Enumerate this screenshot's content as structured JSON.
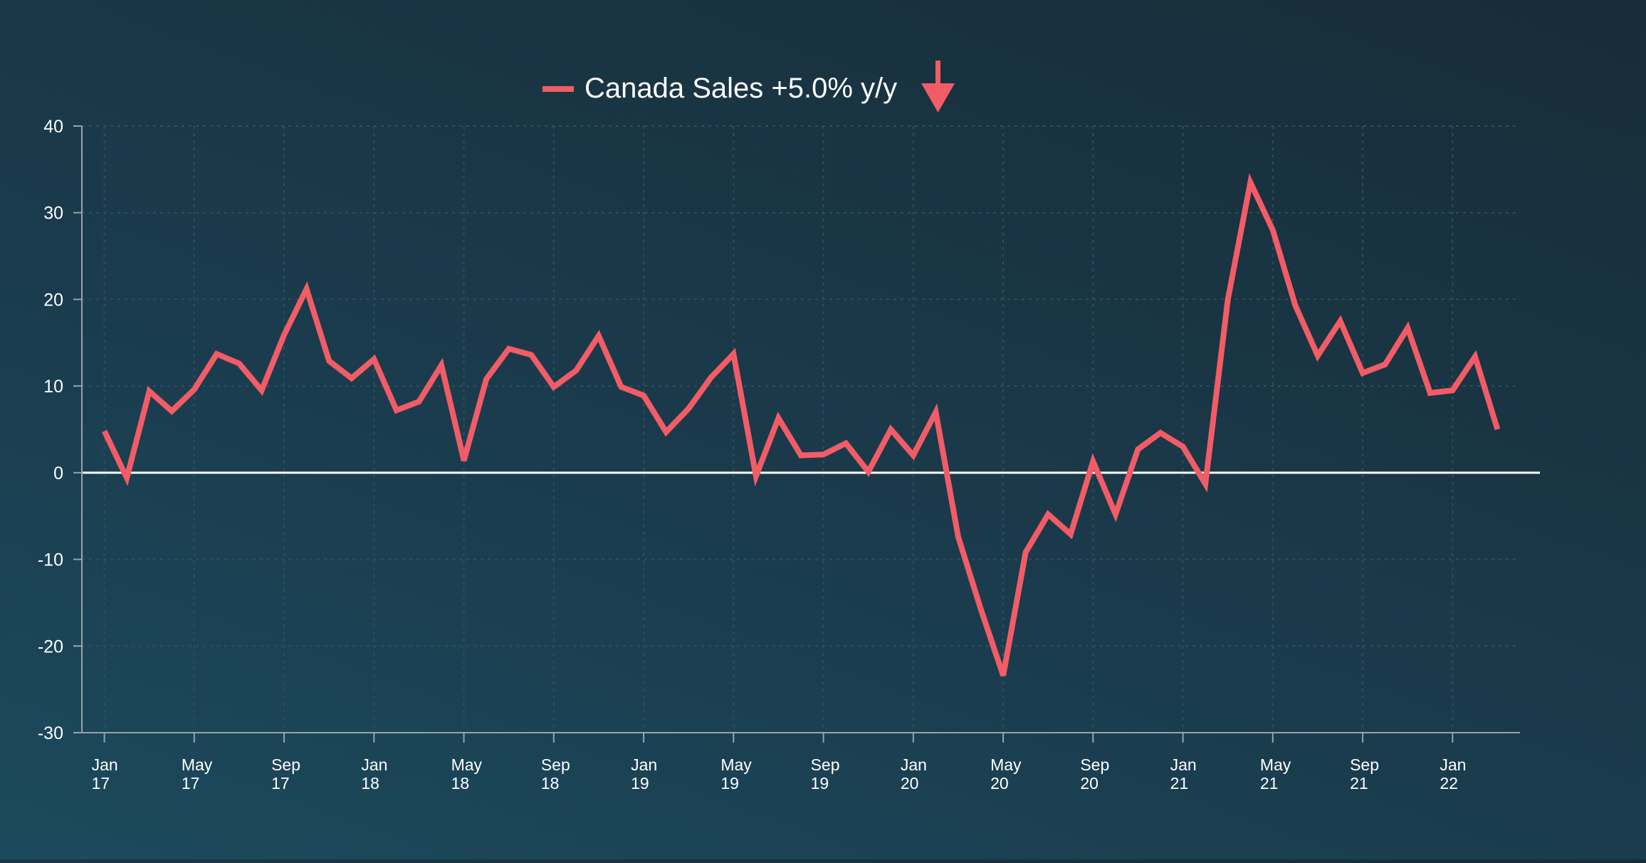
{
  "chart_data": {
    "type": "line",
    "legend": {
      "text": "Canada Sales +5.0% y/y",
      "placement": "top-center",
      "indicator": "down-arrow-icon"
    },
    "colors": {
      "series": "#f25c66",
      "axis": "#9aa3a8",
      "grid": "#2f4f5c",
      "text": "#ffffff",
      "zero_line": "#ffffff"
    },
    "grid": true,
    "ylim": [
      -30,
      40
    ],
    "yticks": [
      40,
      30,
      20,
      10,
      0,
      -10,
      -20,
      -30
    ],
    "xlim": [
      "2016-12",
      "2022-04"
    ],
    "xticks": [
      {
        "date": "2017-01",
        "line1": "Jan",
        "line2": "17"
      },
      {
        "date": "2017-05",
        "line1": "May",
        "line2": "17"
      },
      {
        "date": "2017-09",
        "line1": "Sep",
        "line2": "17"
      },
      {
        "date": "2018-01",
        "line1": "Jan",
        "line2": "18"
      },
      {
        "date": "2018-05",
        "line1": "May",
        "line2": "18"
      },
      {
        "date": "2018-09",
        "line1": "Sep",
        "line2": "18"
      },
      {
        "date": "2019-01",
        "line1": "Jan",
        "line2": "19"
      },
      {
        "date": "2019-05",
        "line1": "May",
        "line2": "19"
      },
      {
        "date": "2019-09",
        "line1": "Sep",
        "line2": "19"
      },
      {
        "date": "2020-01",
        "line1": "Jan",
        "line2": "20"
      },
      {
        "date": "2020-05",
        "line1": "May",
        "line2": "20"
      },
      {
        "date": "2020-09",
        "line1": "Sep",
        "line2": "20"
      },
      {
        "date": "2021-01",
        "line1": "Jan",
        "line2": "21"
      },
      {
        "date": "2021-05",
        "line1": "May",
        "line2": "21"
      },
      {
        "date": "2021-09",
        "line1": "Sep",
        "line2": "21"
      },
      {
        "date": "2022-01",
        "line1": "Jan",
        "line2": "22"
      }
    ],
    "series": [
      {
        "name": "Canada Sales",
        "x": [
          "2017-01",
          "2017-02",
          "2017-03",
          "2017-04",
          "2017-05",
          "2017-06",
          "2017-07",
          "2017-08",
          "2017-09",
          "2017-10",
          "2017-11",
          "2017-12",
          "2018-01",
          "2018-02",
          "2018-03",
          "2018-04",
          "2018-05",
          "2018-06",
          "2018-07",
          "2018-08",
          "2018-09",
          "2018-10",
          "2018-11",
          "2018-12",
          "2019-01",
          "2019-02",
          "2019-03",
          "2019-04",
          "2019-05",
          "2019-06",
          "2019-07",
          "2019-08",
          "2019-09",
          "2019-10",
          "2019-11",
          "2019-12",
          "2020-01",
          "2020-02",
          "2020-03",
          "2020-04",
          "2020-05",
          "2020-06",
          "2020-07",
          "2020-08",
          "2020-09",
          "2020-10",
          "2020-11",
          "2020-12",
          "2021-01",
          "2021-02",
          "2021-03",
          "2021-04",
          "2021-05",
          "2021-06",
          "2021-07",
          "2021-08",
          "2021-09",
          "2021-10",
          "2021-11",
          "2021-12",
          "2022-01",
          "2022-02",
          "2022-03"
        ],
        "values": [
          4.8,
          -0.6,
          9.4,
          7.1,
          9.6,
          13.7,
          12.6,
          9.5,
          15.9,
          21.2,
          12.9,
          10.9,
          13.1,
          7.2,
          8.2,
          12.4,
          1.4,
          10.8,
          14.3,
          13.6,
          9.9,
          11.8,
          15.8,
          9.9,
          8.9,
          4.7,
          7.4,
          11.0,
          13.7,
          -0.4,
          6.3,
          2.0,
          2.1,
          3.4,
          0.1,
          5.0,
          2.0,
          7.0,
          -7.4,
          -15.7,
          -23.4,
          -9.2,
          -4.8,
          -7.1,
          1.3,
          -4.8,
          2.7,
          4.6,
          3.0,
          -1.3,
          20.0,
          33.5,
          28.0,
          19.3,
          13.5,
          17.5,
          11.5,
          12.5,
          16.7,
          9.2,
          9.5,
          13.4,
          5.0
        ]
      }
    ]
  }
}
